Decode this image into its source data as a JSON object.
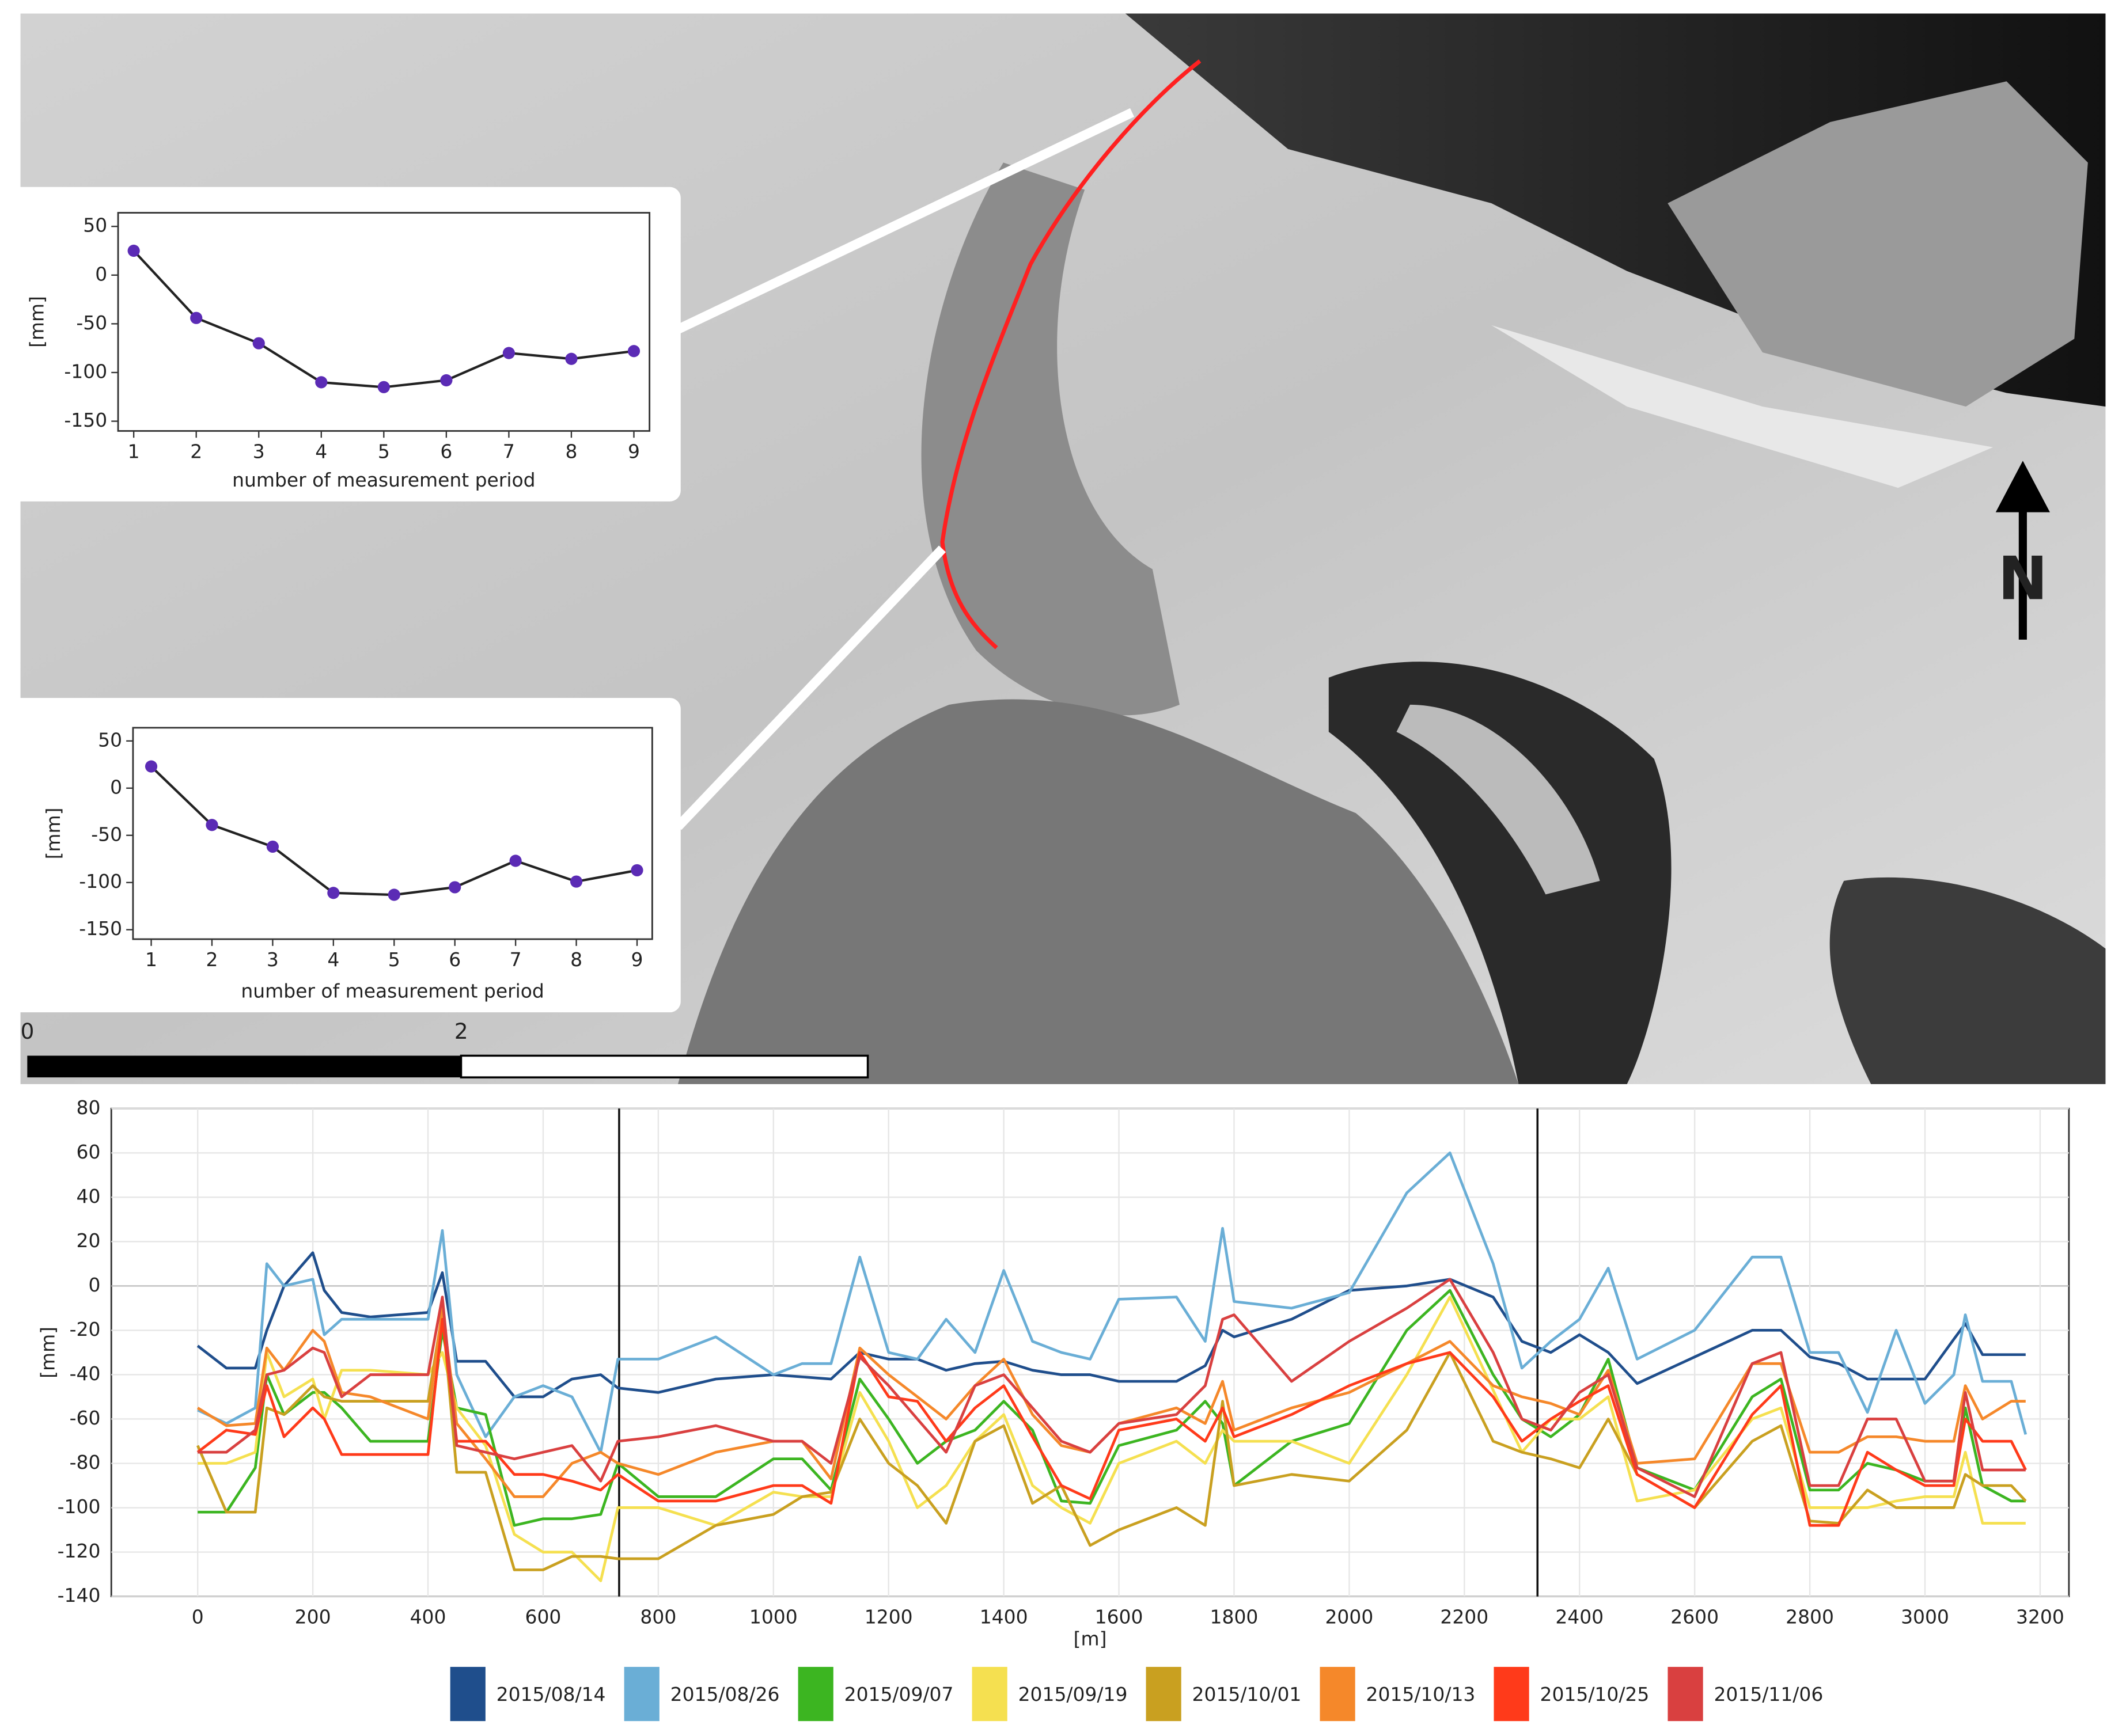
{
  "map": {
    "scale_labels": [
      "0",
      "2"
    ],
    "north_label": "N"
  },
  "chart_data": [
    {
      "type": "line",
      "xlabel": "number of measurement period",
      "ylabel": "[mm]",
      "markers": true,
      "x": [
        1,
        2,
        3,
        4,
        5,
        6,
        7,
        8,
        9
      ],
      "series": [
        {
          "color": "#222222",
          "marker_color": "#5b2bb5",
          "values": [
            25,
            -44,
            -70,
            -110,
            -115,
            -108,
            -80,
            -86,
            -78
          ]
        }
      ],
      "xlim": [
        0.75,
        9.25
      ],
      "ylim": [
        -160,
        64
      ],
      "xticks": [
        1,
        2,
        3,
        4,
        5,
        6,
        7,
        8,
        9
      ],
      "yticks": [
        -150,
        -100,
        -50,
        0,
        50
      ],
      "grid": false
    },
    {
      "type": "line",
      "xlabel": "number of measurement period",
      "ylabel": "[mm]",
      "markers": true,
      "x": [
        1,
        2,
        3,
        4,
        5,
        6,
        7,
        8,
        9
      ],
      "series": [
        {
          "color": "#222222",
          "marker_color": "#5b2bb5",
          "values": [
            23,
            -39,
            -62,
            -111,
            -113,
            -105,
            -77,
            -99,
            -87
          ]
        }
      ],
      "xlim": [
        0.7,
        9.25
      ],
      "ylim": [
        -160,
        64
      ],
      "xticks": [
        1,
        2,
        3,
        4,
        5,
        6,
        7,
        8,
        9
      ],
      "yticks": [
        -150,
        -100,
        -50,
        0,
        50
      ],
      "grid": false
    },
    {
      "type": "line",
      "xlabel": "[m]",
      "ylabel": "[mm]",
      "markers": false,
      "x": [
        0,
        50,
        100,
        120,
        150,
        200,
        220,
        250,
        300,
        400,
        425,
        450,
        500,
        550,
        600,
        650,
        700,
        730,
        800,
        900,
        1000,
        1050,
        1100,
        1150,
        1200,
        1250,
        1300,
        1350,
        1400,
        1450,
        1500,
        1550,
        1600,
        1700,
        1750,
        1780,
        1800,
        1900,
        2000,
        2100,
        2175,
        2250,
        2300,
        2350,
        2400,
        2450,
        2500,
        2600,
        2700,
        2750,
        2800,
        2850,
        2900,
        2950,
        3000,
        3050,
        3070,
        3100,
        3150,
        3175
      ],
      "series": [
        {
          "name": "2015/08/14",
          "color": "#1f4e8c",
          "values": [
            -27,
            -37,
            -37,
            -20,
            0,
            15,
            -2,
            -12,
            -14,
            -12,
            6,
            -34,
            -34,
            -50,
            -50,
            -42,
            -40,
            -46,
            -48,
            -42,
            -40,
            -41,
            -42,
            -30,
            -33,
            -33,
            -38,
            -35,
            -34,
            -38,
            -40,
            -40,
            -43,
            -43,
            -36,
            -20,
            -23,
            -15,
            -2,
            0,
            3,
            -5,
            -25,
            -30,
            -22,
            -30,
            -44,
            -32,
            -20,
            -20,
            -32,
            -35,
            -42,
            -42,
            -42,
            -24,
            -17,
            -31,
            -31,
            -31
          ]
        },
        {
          "name": "2015/08/26",
          "color": "#6aaed6",
          "values": [
            -56,
            -62,
            -55,
            10,
            0,
            3,
            -22,
            -15,
            -15,
            -15,
            25,
            -40,
            -68,
            -50,
            -45,
            -50,
            -75,
            -33,
            -33,
            -23,
            -40,
            -35,
            -35,
            13,
            -30,
            -33,
            -15,
            -30,
            7,
            -25,
            -30,
            -33,
            -6,
            -5,
            -25,
            26,
            -7,
            -10,
            -3,
            42,
            60,
            10,
            -37,
            -25,
            -15,
            8,
            -33,
            -20,
            13,
            13,
            -30,
            -30,
            -57,
            -20,
            -53,
            -40,
            -13,
            -43,
            -43,
            -67
          ]
        },
        {
          "name": "2015/09/07",
          "color": "#3cb521",
          "values": [
            -102,
            -102,
            -82,
            -40,
            -58,
            -48,
            -48,
            -55,
            -70,
            -70,
            -20,
            -55,
            -58,
            -108,
            -105,
            -105,
            -103,
            -80,
            -95,
            -95,
            -78,
            -78,
            -92,
            -42,
            -60,
            -80,
            -70,
            -65,
            -52,
            -65,
            -97,
            -98,
            -72,
            -65,
            -52,
            -62,
            -90,
            -70,
            -62,
            -20,
            -2,
            -40,
            -60,
            -68,
            -58,
            -33,
            -82,
            -92,
            -50,
            -42,
            -92,
            -92,
            -80,
            -83,
            -88,
            -88,
            -55,
            -90,
            -97,
            -97
          ]
        },
        {
          "name": "2015/09/19",
          "color": "#f5e050",
          "values": [
            -80,
            -80,
            -75,
            -30,
            -50,
            -42,
            -60,
            -38,
            -38,
            -40,
            -30,
            -55,
            -72,
            -112,
            -120,
            -120,
            -133,
            -100,
            -100,
            -108,
            -93,
            -95,
            -95,
            -48,
            -70,
            -100,
            -90,
            -70,
            -58,
            -90,
            -100,
            -107,
            -80,
            -70,
            -80,
            -65,
            -70,
            -70,
            -80,
            -40,
            -5,
            -47,
            -75,
            -60,
            -60,
            -50,
            -97,
            -92,
            -60,
            -55,
            -100,
            -100,
            -100,
            -97,
            -95,
            -95,
            -75,
            -107,
            -107,
            -107
          ]
        },
        {
          "name": "2015/10/01",
          "color": "#c9a020",
          "values": [
            -72,
            -102,
            -102,
            -55,
            -58,
            -45,
            -50,
            -52,
            -52,
            -52,
            -12,
            -84,
            -84,
            -128,
            -128,
            -122,
            -122,
            -123,
            -123,
            -108,
            -103,
            -95,
            -93,
            -60,
            -80,
            -90,
            -107,
            -70,
            -63,
            -98,
            -90,
            -117,
            -110,
            -100,
            -108,
            -52,
            -90,
            -85,
            -88,
            -65,
            -30,
            -70,
            -75,
            -78,
            -82,
            -60,
            -85,
            -100,
            -70,
            -63,
            -106,
            -107,
            -92,
            -100,
            -100,
            -100,
            -85,
            -90,
            -90,
            -97
          ]
        },
        {
          "name": "2015/10/13",
          "color": "#f5882a",
          "values": [
            -55,
            -63,
            -62,
            -28,
            -38,
            -20,
            -25,
            -48,
            -50,
            -60,
            -10,
            -62,
            -78,
            -95,
            -95,
            -80,
            -75,
            -80,
            -85,
            -75,
            -70,
            -70,
            -87,
            -28,
            -40,
            -50,
            -60,
            -45,
            -33,
            -58,
            -72,
            -75,
            -62,
            -55,
            -62,
            -43,
            -65,
            -55,
            -48,
            -35,
            -25,
            -45,
            -50,
            -53,
            -58,
            -38,
            -80,
            -78,
            -35,
            -35,
            -75,
            -75,
            -68,
            -68,
            -70,
            -70,
            -45,
            -60,
            -52,
            -52
          ]
        },
        {
          "name": "2015/10/25",
          "color": "#ff3a1a",
          "values": [
            -75,
            -65,
            -67,
            -45,
            -68,
            -55,
            -60,
            -76,
            -76,
            -76,
            -15,
            -70,
            -70,
            -85,
            -85,
            -88,
            -92,
            -85,
            -97,
            -97,
            -90,
            -90,
            -98,
            -30,
            -50,
            -52,
            -70,
            -55,
            -45,
            -68,
            -90,
            -96,
            -65,
            -60,
            -70,
            -55,
            -68,
            -58,
            -45,
            -35,
            -30,
            -50,
            -70,
            -60,
            -52,
            -45,
            -85,
            -100,
            -58,
            -45,
            -108,
            -108,
            -75,
            -83,
            -90,
            -90,
            -60,
            -70,
            -70,
            -83
          ]
        },
        {
          "name": "2015/11/06",
          "color": "#d94040",
          "values": [
            -75,
            -75,
            -65,
            -40,
            -38,
            -28,
            -30,
            -50,
            -40,
            -40,
            -5,
            -72,
            -75,
            -78,
            -75,
            -72,
            -88,
            -70,
            -68,
            -63,
            -70,
            -70,
            -80,
            -32,
            -45,
            -60,
            -75,
            -45,
            -40,
            -55,
            -70,
            -75,
            -62,
            -58,
            -45,
            -15,
            -13,
            -43,
            -25,
            -10,
            3,
            -30,
            -60,
            -65,
            -48,
            -40,
            -82,
            -95,
            -35,
            -30,
            -90,
            -90,
            -60,
            -60,
            -88,
            -88,
            -48,
            -83,
            -83,
            -83
          ]
        }
      ],
      "vlines": [
        732,
        2327
      ],
      "xlim": [
        -150,
        3250
      ],
      "ylim": [
        -140,
        80
      ],
      "xticks": [
        0,
        200,
        400,
        600,
        800,
        1000,
        1200,
        1400,
        1600,
        1800,
        2000,
        2200,
        2400,
        2600,
        2800,
        3000,
        3200
      ],
      "yticks": [
        -140,
        -120,
        -100,
        -80,
        -60,
        -40,
        -20,
        0,
        20,
        40,
        60,
        80
      ],
      "grid": true
    }
  ]
}
